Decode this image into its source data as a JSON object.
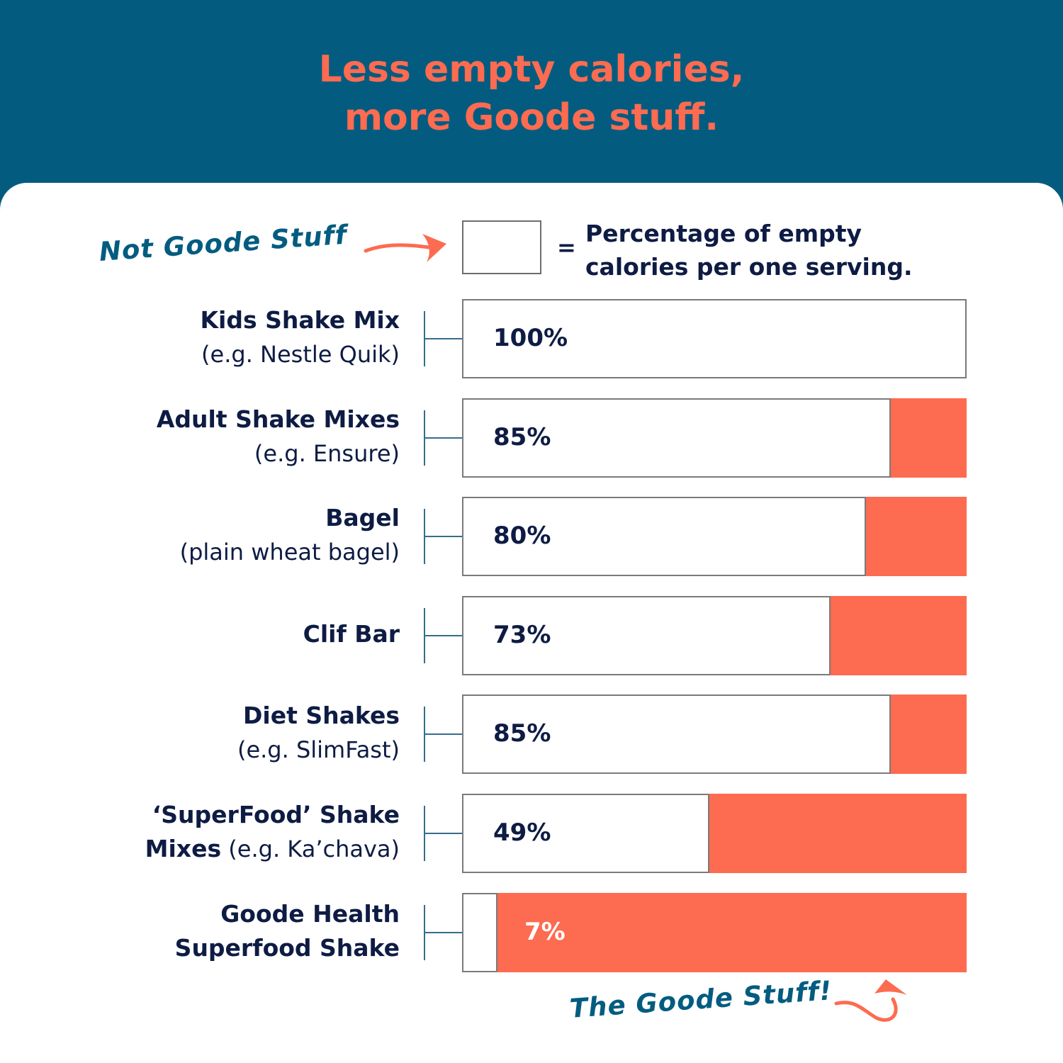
{
  "title": {
    "line1": "Less empty calories,",
    "line2": "more Goode stuff."
  },
  "annotations": {
    "left": "Not Goode Stuff",
    "bottom": "The Goode Stuff!"
  },
  "legend": {
    "equals": "=",
    "line1": "Percentage of empty",
    "line2": "calories per one serving."
  },
  "colors": {
    "header_bg": "#035c80",
    "accent": "#fd6b50",
    "text": "#0e1c44"
  },
  "chart_data": {
    "type": "bar",
    "orientation": "horizontal",
    "title": "Less empty calories, more Goode stuff.",
    "unit": "%",
    "xlim": [
      0,
      100
    ],
    "categories": [
      {
        "name": "Kids Shake Mix",
        "note": "(e.g. Nestle Quik)",
        "value": 100,
        "label": "100%"
      },
      {
        "name": "Adult Shake Mixes",
        "note": "(e.g. Ensure)",
        "value": 85,
        "label": "85%"
      },
      {
        "name": "Bagel",
        "note": "(plain wheat bagel)",
        "value": 80,
        "label": "80%"
      },
      {
        "name": "Clif Bar",
        "note": "",
        "value": 73,
        "label": "73%"
      },
      {
        "name": "Diet Shakes",
        "note": "(e.g. SlimFast)",
        "value": 85,
        "label": "85%"
      },
      {
        "name": "‘SuperFood’ Shake Mixes",
        "note": "(e.g. Ka’chava)",
        "value": 49,
        "label": "49%"
      },
      {
        "name": "Goode Health Superfood Shake",
        "note": "",
        "value": 7,
        "label": "7%"
      }
    ]
  }
}
